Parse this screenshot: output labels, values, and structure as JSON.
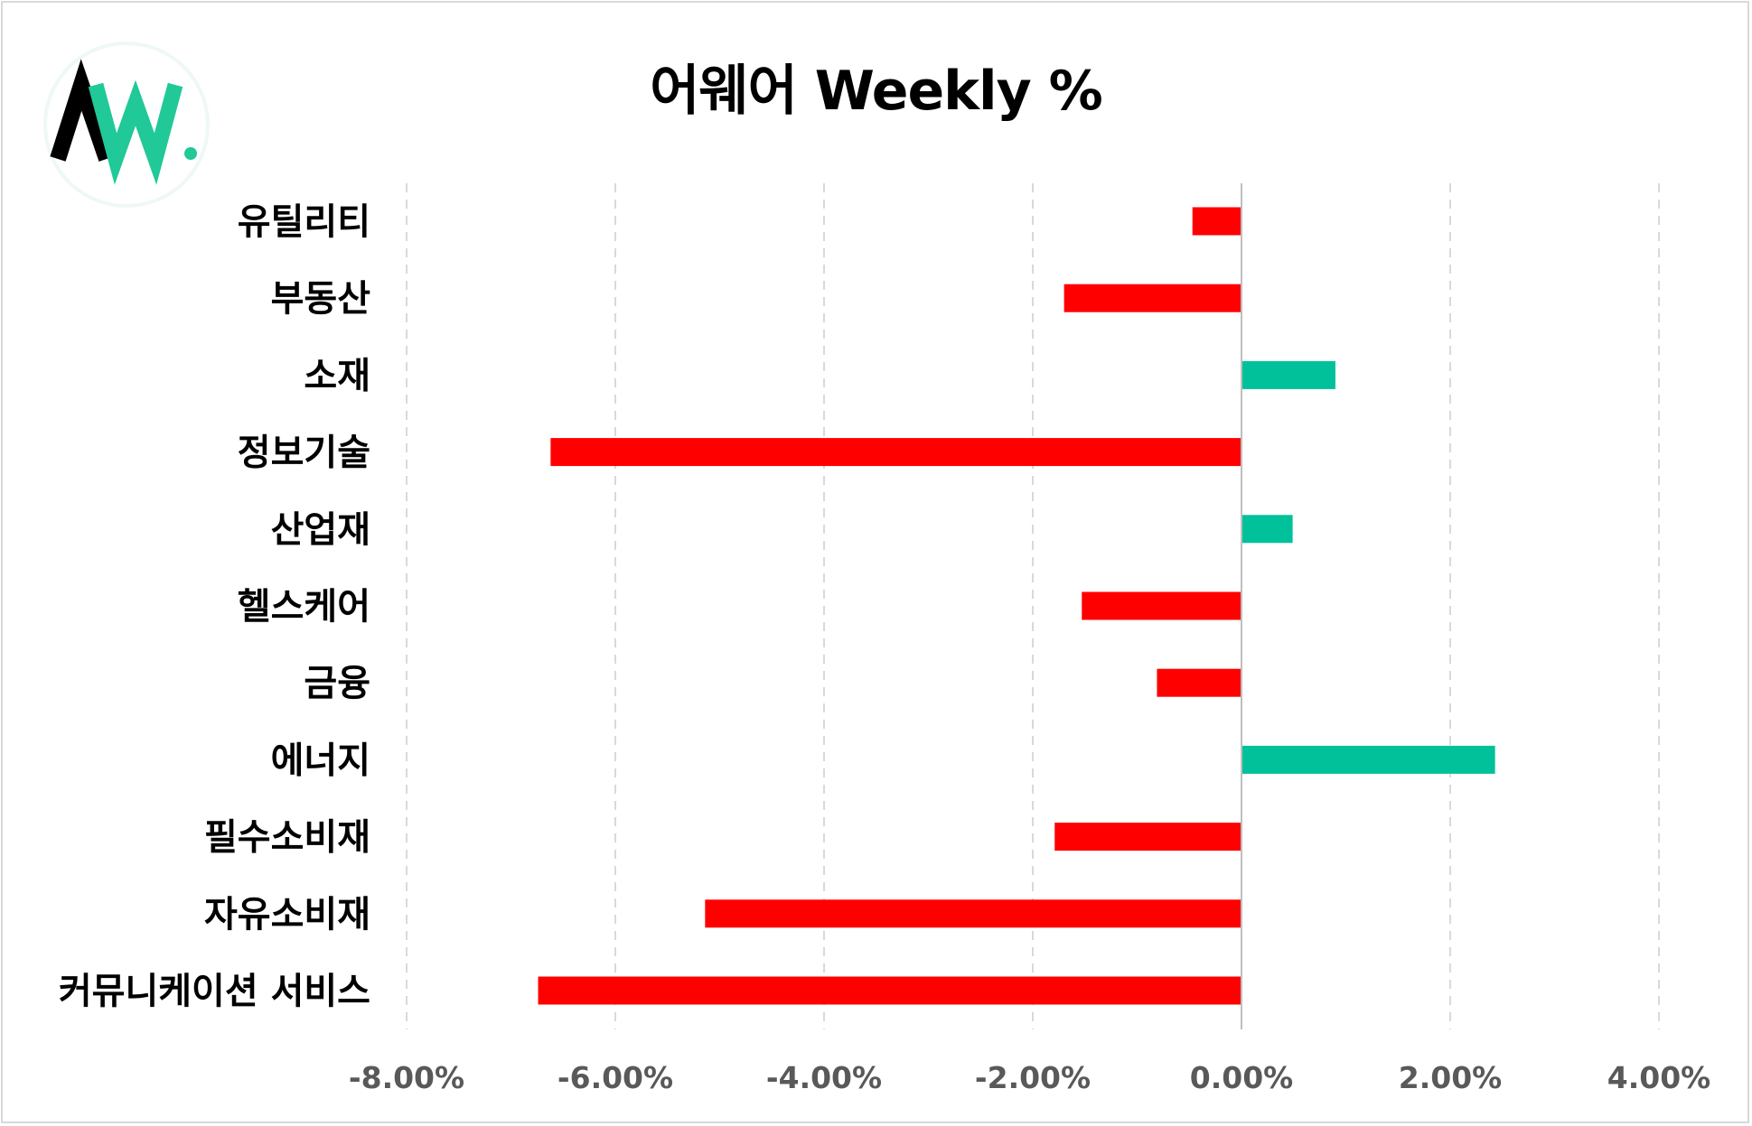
{
  "chart_data": {
    "type": "bar",
    "orientation": "horizontal",
    "title": "어웨어 Weekly %",
    "categories": [
      "유틸리티",
      "부동산",
      "소재",
      "정보기술",
      "산업재",
      "헬스케어",
      "금융",
      "에너지",
      "필수소비재",
      "자유소비재",
      "커뮤니케이션 서비스"
    ],
    "values": [
      -0.47,
      -1.7,
      0.9,
      -6.62,
      0.49,
      -1.53,
      -0.81,
      2.43,
      -1.79,
      -5.14,
      -6.74
    ],
    "xlim": [
      -8,
      4
    ],
    "x_ticks": [
      -8,
      -6,
      -4,
      -2,
      0,
      2,
      4
    ],
    "x_tick_labels": [
      "-8.00%",
      "-6.00%",
      "-4.00%",
      "-2.00%",
      "0.00%",
      "2.00%",
      "4.00%"
    ],
    "grid": "vertical-dashed",
    "legend": "none",
    "colors": {
      "negative": "#ff0000",
      "positive": "#00c19a",
      "grid": "#d9d9d9",
      "axis": "#bfbfbf"
    }
  },
  "logo": {
    "text": "AW.",
    "colors": {
      "dark": "#000000",
      "accent": "#20c997"
    }
  }
}
